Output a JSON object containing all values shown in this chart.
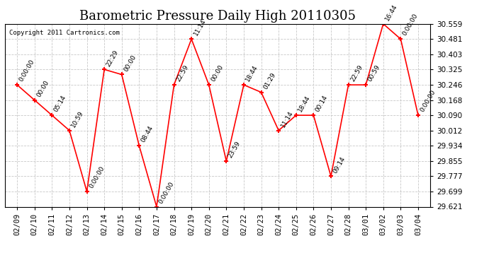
{
  "title": "Barometric Pressure Daily High 20110305",
  "copyright": "Copyright 2011 Cartronics.com",
  "x_labels": [
    "02/09",
    "02/10",
    "02/11",
    "02/12",
    "02/13",
    "02/14",
    "02/15",
    "02/16",
    "02/17",
    "02/18",
    "02/19",
    "02/20",
    "02/21",
    "02/22",
    "02/23",
    "02/24",
    "02/25",
    "02/26",
    "02/27",
    "02/28",
    "03/01",
    "03/02",
    "03/03",
    "03/04"
  ],
  "y_values": [
    30.246,
    30.168,
    30.09,
    30.012,
    29.699,
    30.325,
    30.299,
    29.934,
    29.621,
    30.246,
    30.481,
    30.246,
    29.855,
    30.246,
    30.208,
    30.012,
    30.09,
    30.09,
    29.777,
    30.246,
    30.246,
    30.559,
    30.481,
    30.09
  ],
  "point_labels": [
    "0:00:00",
    "00:00",
    "05:14",
    "10:59",
    "0:00:00",
    "22:29",
    "00:00",
    "08:44",
    "0:00:00",
    "22:59",
    "11:14",
    "00:00",
    "23:59",
    "18:44",
    "01:29",
    "11:14",
    "18:44",
    "00:14",
    "09:14",
    "22:59",
    "00:59",
    "16:44",
    "0:00:00",
    "0:00:00"
  ],
  "y_min": 29.621,
  "y_max": 30.559,
  "y_ticks": [
    29.621,
    29.699,
    29.777,
    29.855,
    29.934,
    30.012,
    30.09,
    30.168,
    30.246,
    30.325,
    30.403,
    30.481,
    30.559
  ],
  "line_color": "#ff0000",
  "marker_color": "#ff0000",
  "background_color": "#ffffff",
  "grid_color": "#c8c8c8",
  "title_fontsize": 13,
  "tick_fontsize": 7.5,
  "point_label_fontsize": 6.5
}
